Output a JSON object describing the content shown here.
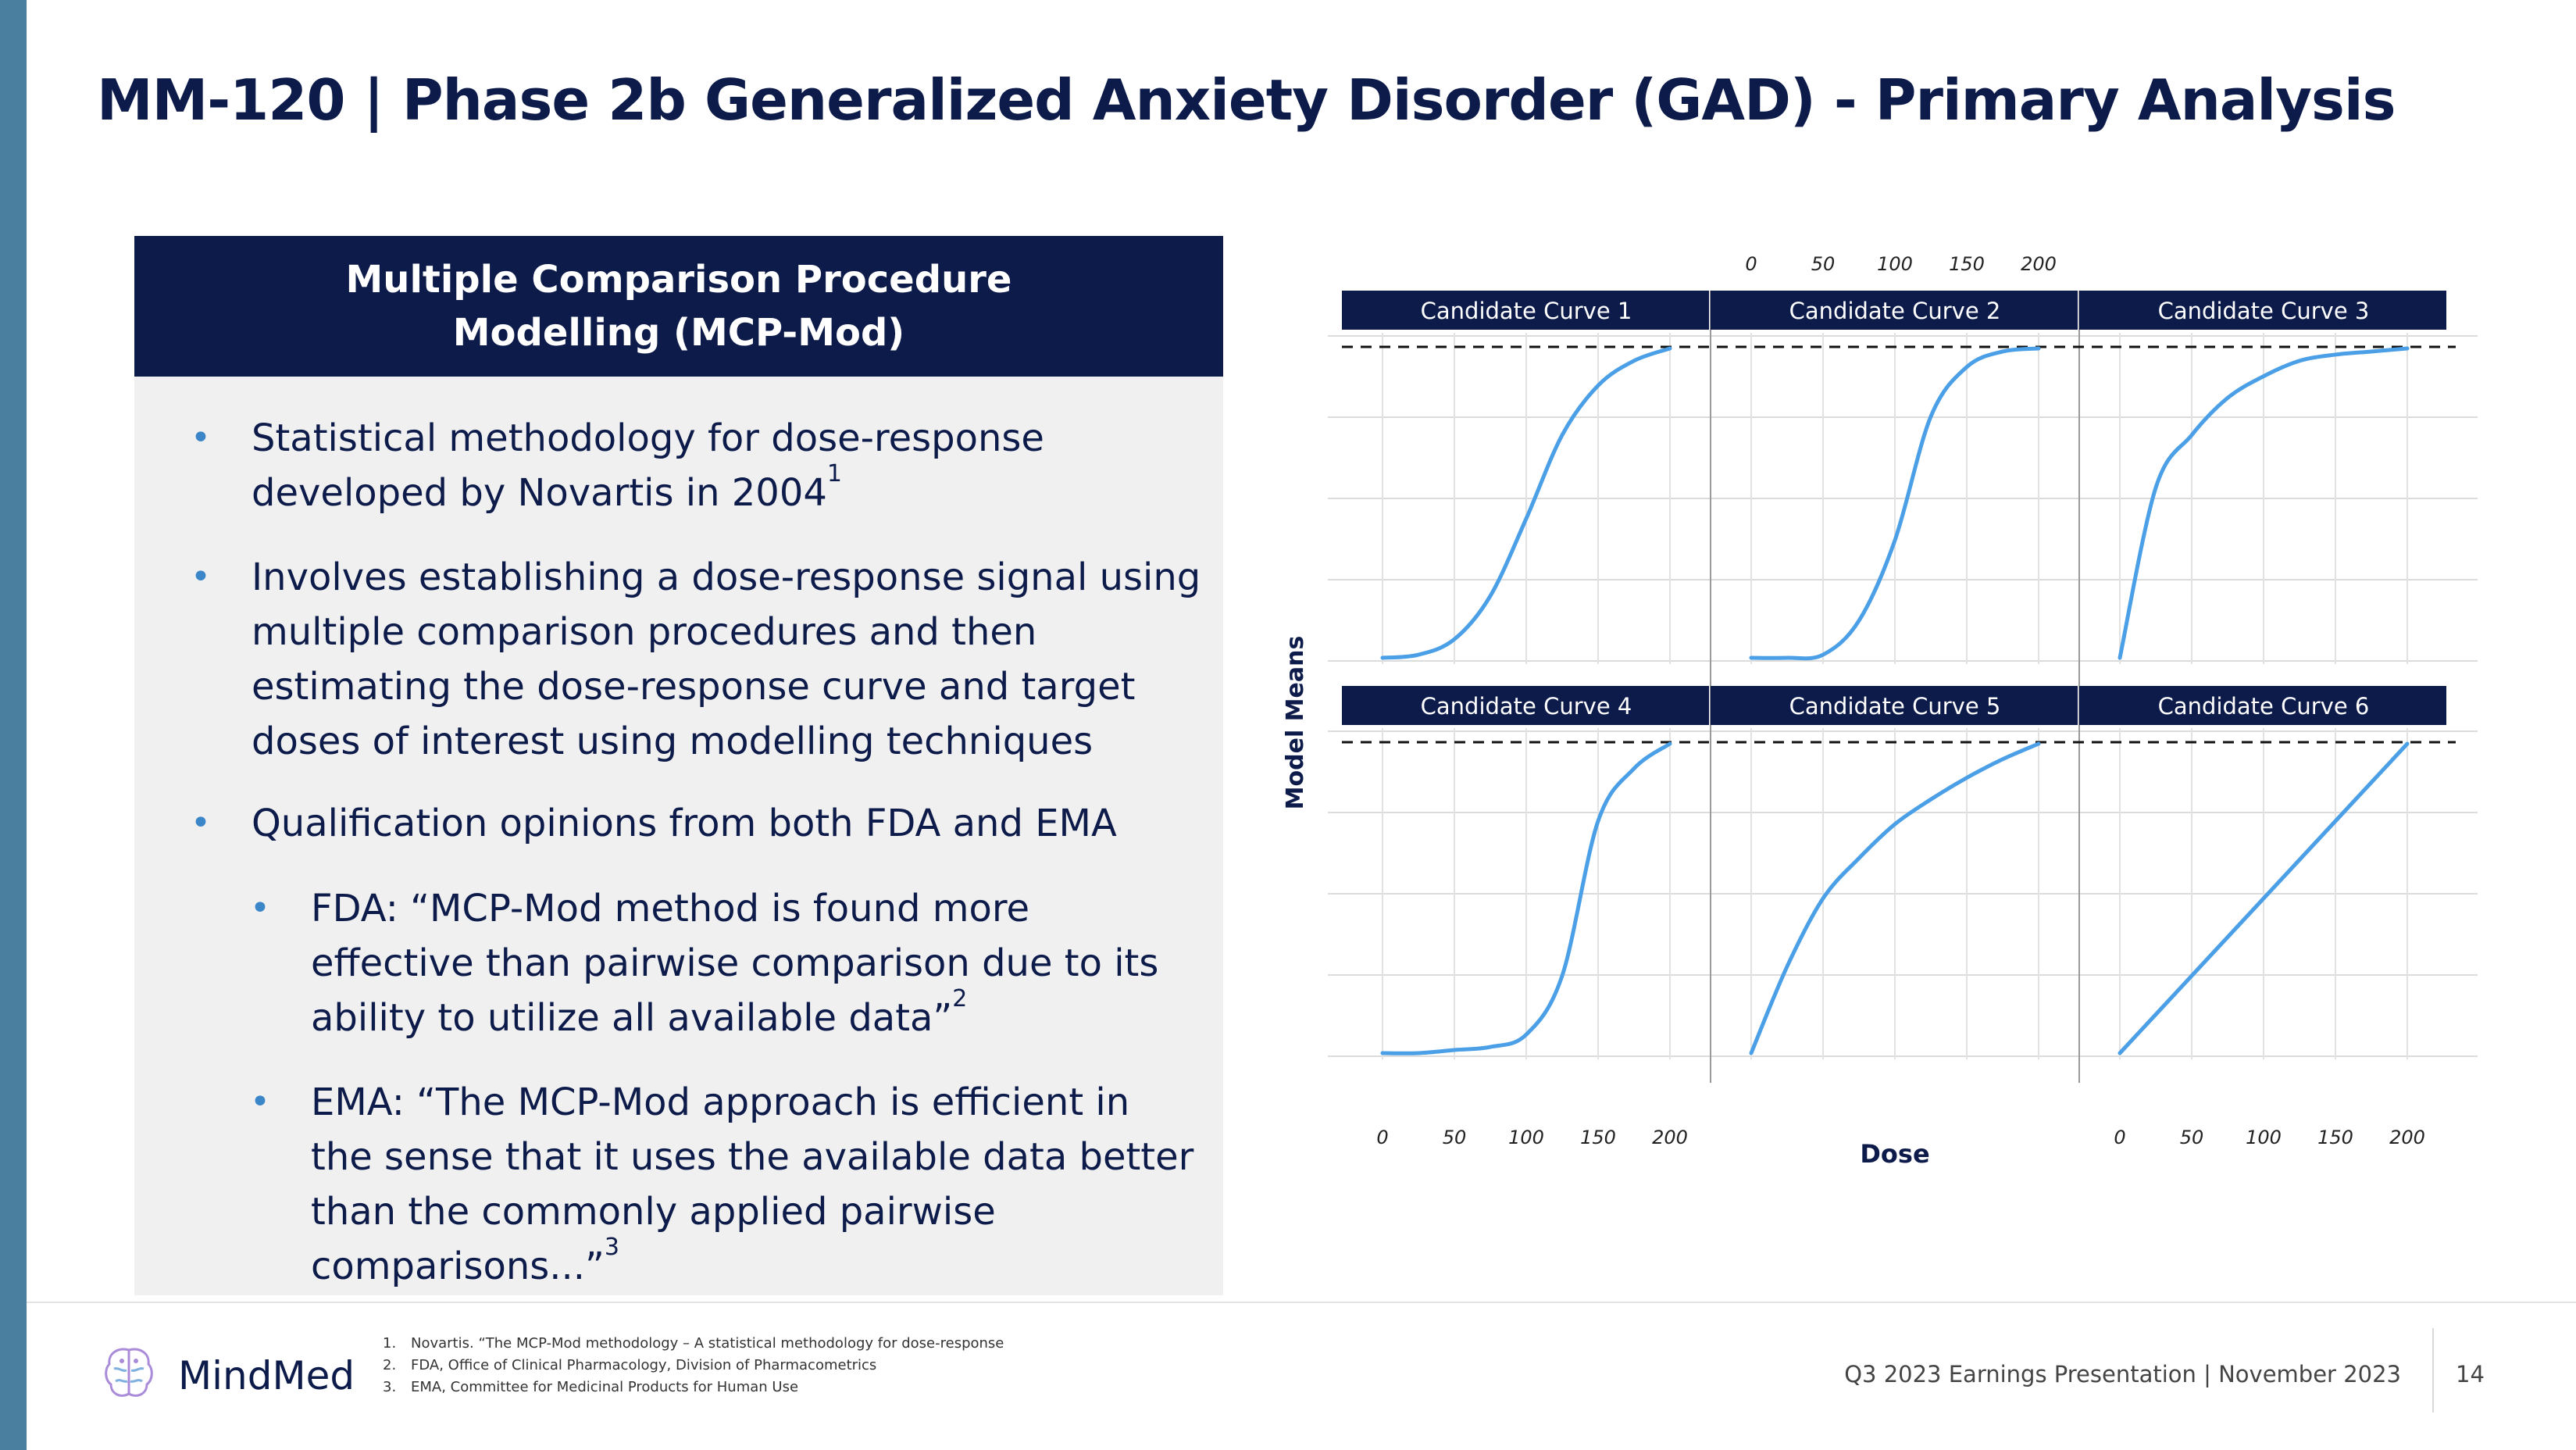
{
  "title": "MM-120 | Phase 2b Generalized Anxiety Disorder (GAD) - Primary Analysis",
  "panel": {
    "heading_line1": "Multiple Comparison Procedure",
    "heading_line2": "Modelling (MCP-Mod)",
    "bullet1_line1": "Statistical methodology for dose-response",
    "bullet1_line2": "developed by Novartis in 2004",
    "bullet1_sup": "1",
    "bullet2_line1": "Involves establishing a dose-response signal using",
    "bullet2_line2": "multiple comparison procedures and then",
    "bullet2_line3": "estimating the dose-response curve and target",
    "bullet2_line4": "doses of interest using modelling techniques",
    "bullet3_line1": "Qualification opinions from both FDA and EMA",
    "sub1_line1": "FDA: “MCP-Mod method is found more",
    "sub1_line2": "effective than pairwise comparison due to its",
    "sub1_line3": "ability to utilize all available data”",
    "sub1_sup": "2",
    "sub2_line1": "EMA:  “The MCP-Mod approach is efficient in",
    "sub2_line2": "the sense that it uses the available data better",
    "sub2_line3": "than the commonly applied pairwise",
    "sub2_line4": "comparisons...”",
    "sub2_sup": "3",
    "bullet_glyph": "•"
  },
  "chart": {
    "xlabel": "Dose",
    "ylabel": "Model Means",
    "x_ticks": [
      "0",
      "50",
      "100",
      "150",
      "200"
    ],
    "panels": [
      {
        "label": "Candidate Curve 1"
      },
      {
        "label": "Candidate Curve 2"
      },
      {
        "label": "Candidate Curve 3"
      },
      {
        "label": "Candidate Curve 4"
      },
      {
        "label": "Candidate Curve 5"
      },
      {
        "label": "Candidate Curve 6"
      }
    ],
    "header_color": "#0d1b4a",
    "curve_color": "#4a9fe6"
  },
  "chart_data": {
    "type": "line",
    "xlabel": "Dose",
    "ylabel": "Model Means",
    "xlim": [
      0,
      200
    ],
    "ylim": [
      0,
      1
    ],
    "grid": true,
    "x": [
      0,
      25,
      50,
      75,
      100,
      125,
      150,
      175,
      200
    ],
    "series": [
      {
        "name": "Candidate Curve 1",
        "values": [
          0.0,
          0.01,
          0.06,
          0.2,
          0.45,
          0.72,
          0.88,
          0.96,
          1.0
        ]
      },
      {
        "name": "Candidate Curve 2",
        "values": [
          0.0,
          0.0,
          0.01,
          0.12,
          0.38,
          0.78,
          0.94,
          0.99,
          1.0
        ]
      },
      {
        "name": "Candidate Curve 3",
        "values": [
          0.0,
          0.55,
          0.72,
          0.84,
          0.91,
          0.96,
          0.98,
          0.99,
          1.0
        ]
      },
      {
        "name": "Candidate Curve 4",
        "values": [
          0.0,
          0.0,
          0.01,
          0.02,
          0.06,
          0.25,
          0.75,
          0.92,
          1.0
        ]
      },
      {
        "name": "Candidate Curve 5",
        "values": [
          0.0,
          0.28,
          0.5,
          0.63,
          0.74,
          0.82,
          0.89,
          0.95,
          1.0
        ]
      },
      {
        "name": "Candidate Curve 6",
        "values": [
          0.0,
          0.125,
          0.25,
          0.375,
          0.5,
          0.625,
          0.75,
          0.875,
          1.0
        ]
      }
    ]
  },
  "footer": {
    "logo": "MindMed",
    "fn1_num": "1.",
    "fn1": "Novartis.  “The MCP-Mod methodology – A statistical methodology for dose-response",
    "fn2_num": "2.",
    "fn2": "FDA, Office of Clinical Pharmacology, Division of Pharmacometrics",
    "fn3_num": "3.",
    "fn3": "EMA, Committee for Medicinal Products for Human Use",
    "presentation": "Q3 2023 Earnings Presentation | November 2023",
    "page": "14"
  }
}
